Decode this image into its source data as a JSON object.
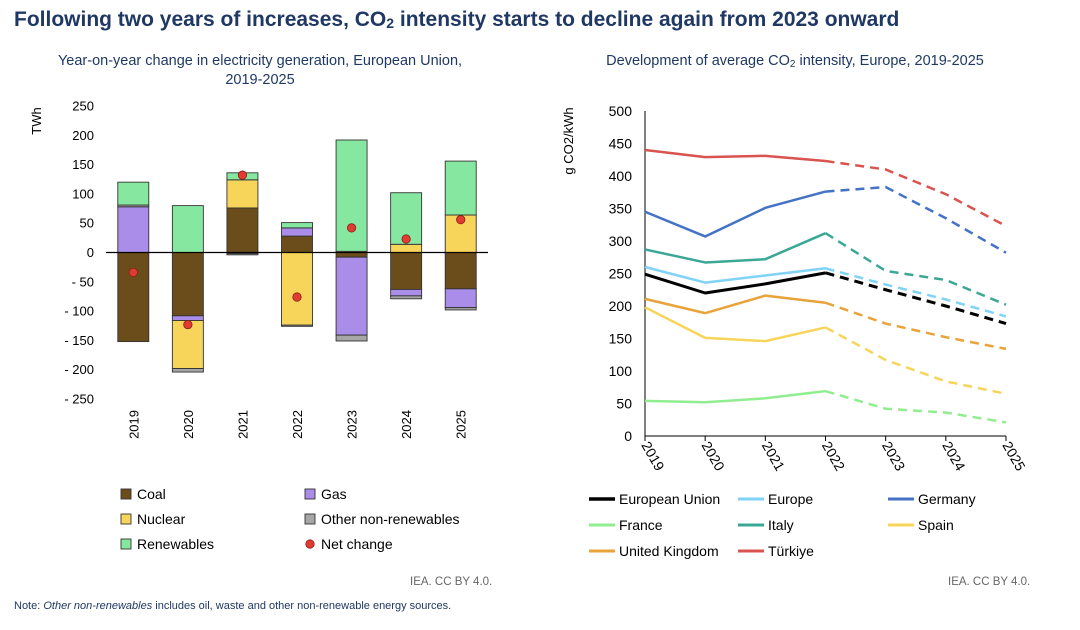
{
  "title_main": "Following two years of increases, CO",
  "title_sub2": "2",
  "title_tail": " intensity starts to decline again from 2023 onward",
  "left_subtitle_1": "Year-on-year change in electricity generation, European Union,",
  "left_subtitle_2": "2019-2025",
  "right_subtitle_1": "Development of average CO",
  "right_subtitle_sub": "2",
  "right_subtitle_2": " intensity, Europe, 2019-2025",
  "credit_left": "IEA. CC BY 4.0.",
  "credit_right": "IEA. CC BY 4.0.",
  "note_prefix": "Note: ",
  "note_italic": "Other non-renewables",
  "note_suffix": " includes oil, waste and other non-renewable energy sources.",
  "colors": {
    "coal": "#6b4d1b",
    "gas": "#a98de8",
    "nuclear": "#f7d45a",
    "other": "#a6a6a6",
    "renewables": "#86e8a0",
    "net": "#e03c31"
  },
  "chart_data": [
    {
      "type": "bar",
      "stacked": true,
      "ylabel": "TWh",
      "ylim": [
        -250,
        250
      ],
      "yticks": [
        "250",
        "200",
        "150",
        "100",
        "50",
        "0",
        "- 50",
        "- 100",
        "- 150",
        "- 200",
        "- 250"
      ],
      "categories": [
        "2019",
        "2020",
        "2021",
        "2022",
        "2023",
        "2024",
        "2025"
      ],
      "series": [
        {
          "name": "Coal",
          "key": "coal",
          "values": [
            -152,
            -108,
            76,
            28,
            -8,
            -63,
            -62
          ]
        },
        {
          "name": "Gas",
          "key": "gas",
          "values": [
            78,
            -8,
            -2,
            14,
            -133,
            -11,
            -32
          ]
        },
        {
          "name": "Nuclear",
          "key": "nuclear",
          "values": [
            0,
            -82,
            48,
            -124,
            2,
            14,
            64
          ]
        },
        {
          "name": "Other non-renewables",
          "key": "other",
          "values": [
            3,
            -6,
            -2,
            -2,
            -10,
            -5,
            -4
          ]
        },
        {
          "name": "Renewables",
          "key": "renewables",
          "values": [
            39,
            80,
            12,
            9,
            190,
            88,
            92
          ]
        }
      ],
      "net_change": {
        "name": "Net change",
        "values": [
          -34,
          -123,
          132,
          -76,
          42,
          23,
          56
        ]
      },
      "legend": [
        "Coal",
        "Gas",
        "Nuclear",
        "Other non-renewables",
        "Renewables",
        "Net change"
      ]
    },
    {
      "type": "line",
      "ylabel": "g CO2/kWh",
      "ylim": [
        0,
        500
      ],
      "yticks": [
        "0",
        "50",
        "100",
        "150",
        "200",
        "250",
        "300",
        "350",
        "400",
        "450",
        "500"
      ],
      "x": [
        "2019",
        "2020",
        "2021",
        "2022",
        "2023",
        "2024",
        "2025"
      ],
      "dashed_from": "2022",
      "series": [
        {
          "name": "European Union",
          "color": "#000000",
          "width": 3,
          "values": [
            249,
            220,
            234,
            251,
            225,
            200,
            173
          ]
        },
        {
          "name": "Europe",
          "color": "#7fd3f7",
          "width": 2.5,
          "values": [
            260,
            236,
            247,
            258,
            233,
            210,
            184
          ]
        },
        {
          "name": "Germany",
          "color": "#4472c4",
          "width": 2.5,
          "values": [
            345,
            307,
            351,
            376,
            383,
            335,
            282
          ]
        },
        {
          "name": "France",
          "color": "#90ee90",
          "width": 2.5,
          "values": [
            54,
            52,
            58,
            69,
            42,
            36,
            21
          ]
        },
        {
          "name": "Italy",
          "color": "#3aa895",
          "width": 2.5,
          "values": [
            287,
            267,
            272,
            312,
            254,
            240,
            202
          ]
        },
        {
          "name": "Spain",
          "color": "#f7d45a",
          "width": 2.5,
          "values": [
            198,
            151,
            146,
            167,
            117,
            84,
            65
          ]
        },
        {
          "name": "United Kingdom",
          "color": "#e8a33a",
          "width": 2.5,
          "values": [
            211,
            189,
            216,
            205,
            173,
            152,
            134
          ]
        },
        {
          "name": "Türkiye",
          "color": "#d9534f",
          "width": 2.5,
          "values": [
            440,
            429,
            431,
            423,
            410,
            372,
            323
          ]
        }
      ]
    }
  ]
}
